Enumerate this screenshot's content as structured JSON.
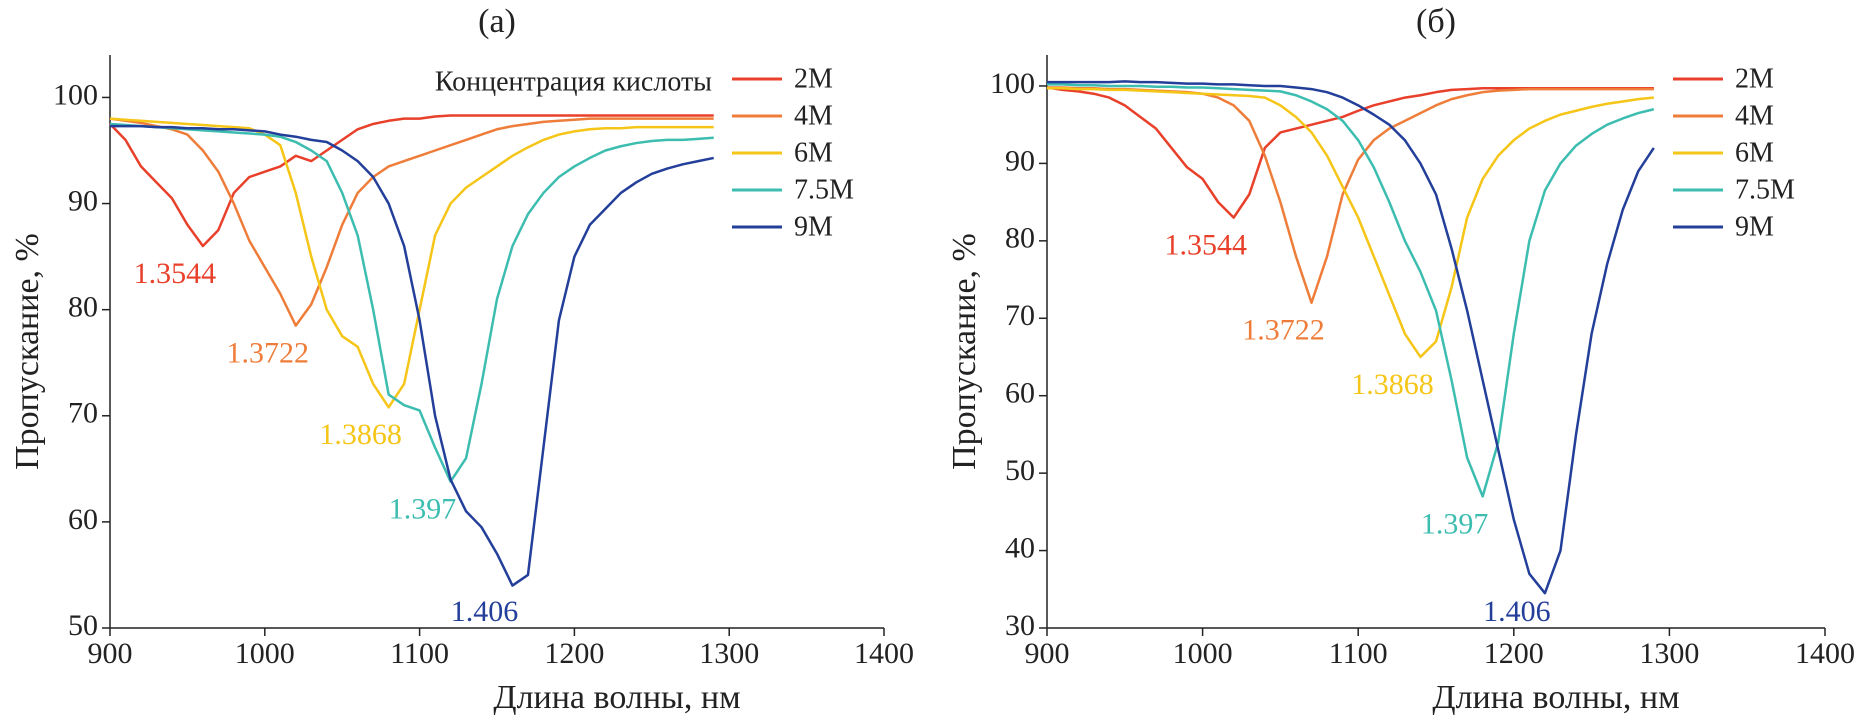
{
  "chart_data": [
    {
      "type": "line",
      "title": "(а)",
      "x_label": "Длина волны, нм",
      "y_label": "Пропускание, %",
      "legend_title": "Концентрация кислоты",
      "legend": "upper right",
      "grid": false,
      "xlim": [
        900,
        1400
      ],
      "xticks": [
        900,
        1000,
        1100,
        1200,
        1300,
        1400
      ],
      "ylim": [
        50,
        104
      ],
      "yticks": [
        50,
        60,
        70,
        80,
        90,
        100
      ],
      "x": [
        900,
        910,
        920,
        930,
        940,
        950,
        960,
        970,
        980,
        990,
        1000,
        1010,
        1020,
        1030,
        1040,
        1050,
        1060,
        1070,
        1080,
        1090,
        1100,
        1110,
        1120,
        1130,
        1140,
        1150,
        1160,
        1170,
        1180,
        1190,
        1200,
        1210,
        1220,
        1230,
        1240,
        1250,
        1260,
        1270,
        1280,
        1290
      ],
      "series": [
        {
          "name": "2M",
          "color": "#e8402a",
          "peak_label": "1.3544",
          "values": [
            97.5,
            96,
            93.5,
            92,
            90.5,
            88,
            86,
            87.5,
            91,
            92.5,
            93,
            93.5,
            94.5,
            94,
            95,
            96,
            97,
            97.5,
            97.8,
            98,
            98,
            98.2,
            98.3,
            98.3,
            98.3,
            98.3,
            98.3,
            98.3,
            98.3,
            98.3,
            98.3,
            98.3,
            98.3,
            98.3,
            98.3,
            98.3,
            98.3,
            98.3,
            98.3,
            98.3
          ]
        },
        {
          "name": "4M",
          "color": "#ef7d3a",
          "peak_label": "1.3722",
          "values": [
            98,
            97.8,
            97.6,
            97.3,
            97,
            96.5,
            95,
            93,
            90,
            86.5,
            84,
            81.5,
            78.5,
            80.5,
            84,
            88,
            91,
            92.5,
            93.5,
            94,
            94.5,
            95,
            95.5,
            96,
            96.5,
            97,
            97.3,
            97.5,
            97.7,
            97.8,
            97.9,
            98,
            98,
            98,
            98,
            98,
            98,
            98,
            98,
            98
          ]
        },
        {
          "name": "6M",
          "color": "#f5c518",
          "peak_label": "1.3868",
          "values": [
            98,
            97.9,
            97.8,
            97.7,
            97.6,
            97.5,
            97.4,
            97.3,
            97.2,
            97.1,
            96.5,
            95.5,
            91,
            85,
            80,
            77.5,
            76.5,
            73,
            70.8,
            73,
            80,
            87,
            90,
            91.5,
            92.5,
            93.5,
            94.5,
            95.3,
            96,
            96.5,
            96.8,
            97,
            97.1,
            97.1,
            97.2,
            97.2,
            97.2,
            97.2,
            97.2,
            97.2
          ]
        },
        {
          "name": "7.5M",
          "color": "#3dbdb0",
          "peak_label": "1.397",
          "values": [
            97.5,
            97.4,
            97.3,
            97.2,
            97.1,
            97,
            96.9,
            96.8,
            96.7,
            96.6,
            96.5,
            96.3,
            95.8,
            95,
            94,
            91,
            87,
            80,
            72,
            71,
            70.5,
            67,
            63.8,
            66,
            73,
            81,
            86,
            89,
            91,
            92.5,
            93.5,
            94.3,
            95,
            95.4,
            95.7,
            95.9,
            96,
            96,
            96.1,
            96.2
          ]
        },
        {
          "name": "9M",
          "color": "#233f9a",
          "peak_label": "1.406",
          "values": [
            97.3,
            97.3,
            97.3,
            97.2,
            97.2,
            97.1,
            97.1,
            97,
            97,
            96.9,
            96.8,
            96.5,
            96.3,
            96,
            95.8,
            95,
            94,
            92.5,
            90,
            86,
            79,
            70,
            64,
            61,
            59.5,
            57,
            54,
            55,
            67,
            79,
            85,
            88,
            89.5,
            91,
            92,
            92.8,
            93.3,
            93.7,
            94,
            94.3
          ]
        }
      ]
    },
    {
      "type": "line",
      "title": "(б)",
      "x_label": "Длина волны, нм",
      "y_label": "Пропускание, %",
      "legend": "upper right",
      "grid": false,
      "xlim": [
        900,
        1400
      ],
      "xticks": [
        900,
        1000,
        1100,
        1200,
        1300,
        1400
      ],
      "ylim": [
        30,
        104
      ],
      "yticks": [
        30,
        40,
        50,
        60,
        70,
        80,
        90,
        100
      ],
      "x": [
        900,
        910,
        920,
        930,
        940,
        950,
        960,
        970,
        980,
        990,
        1000,
        1010,
        1020,
        1030,
        1040,
        1050,
        1060,
        1070,
        1080,
        1090,
        1100,
        1110,
        1120,
        1130,
        1140,
        1150,
        1160,
        1170,
        1180,
        1190,
        1200,
        1210,
        1220,
        1230,
        1240,
        1250,
        1260,
        1270,
        1280,
        1290
      ],
      "series": [
        {
          "name": "2M",
          "color": "#e8402a",
          "peak_label": "1.3544",
          "values": [
            99.8,
            99.5,
            99.3,
            99,
            98.5,
            97.5,
            96,
            94.5,
            92,
            89.5,
            88,
            85,
            83,
            86,
            92,
            94,
            94.5,
            95,
            95.5,
            96,
            96.8,
            97.5,
            98,
            98.5,
            98.8,
            99.2,
            99.5,
            99.6,
            99.7,
            99.7,
            99.7,
            99.7,
            99.7,
            99.7,
            99.7,
            99.7,
            99.7,
            99.7,
            99.7,
            99.7
          ]
        },
        {
          "name": "4M",
          "color": "#ef7d3a",
          "peak_label": "1.3722",
          "values": [
            99.8,
            99.8,
            99.7,
            99.7,
            99.6,
            99.6,
            99.5,
            99.4,
            99.3,
            99.2,
            99,
            98.5,
            97.5,
            95.5,
            91,
            85,
            78,
            72,
            78,
            86,
            90.5,
            93,
            94.5,
            95.5,
            96.5,
            97.5,
            98.3,
            98.8,
            99.2,
            99.4,
            99.5,
            99.6,
            99.6,
            99.6,
            99.6,
            99.6,
            99.6,
            99.6,
            99.6,
            99.6
          ]
        },
        {
          "name": "6M",
          "color": "#f5c518",
          "peak_label": "1.3868",
          "values": [
            99.7,
            99.7,
            99.6,
            99.6,
            99.5,
            99.5,
            99.4,
            99.3,
            99.2,
            99.1,
            99,
            98.9,
            98.8,
            98.7,
            98.5,
            97.5,
            96,
            94,
            91,
            87,
            83,
            78,
            73,
            68,
            65,
            67,
            74,
            83,
            88,
            91,
            93,
            94.5,
            95.5,
            96.3,
            96.8,
            97.3,
            97.7,
            98,
            98.3,
            98.5
          ]
        },
        {
          "name": "7.5M",
          "color": "#3dbdb0",
          "peak_label": "1.397",
          "values": [
            100.2,
            100.2,
            100.1,
            100.1,
            100,
            100,
            100,
            99.9,
            99.9,
            99.8,
            99.8,
            99.7,
            99.6,
            99.5,
            99.4,
            99.3,
            98.8,
            98,
            97,
            95.5,
            93,
            89.5,
            85,
            80,
            76,
            71,
            62,
            52,
            47,
            54,
            68,
            80,
            86.5,
            90,
            92.3,
            93.8,
            95,
            95.8,
            96.5,
            97
          ]
        },
        {
          "name": "9M",
          "color": "#233f9a",
          "peak_label": "1.406",
          "values": [
            100.5,
            100.5,
            100.5,
            100.5,
            100.5,
            100.6,
            100.5,
            100.5,
            100.4,
            100.3,
            100.3,
            100.2,
            100.2,
            100.1,
            100,
            100,
            99.8,
            99.6,
            99.2,
            98.5,
            97.5,
            96.3,
            95,
            93,
            90,
            86,
            79,
            71,
            62,
            53,
            44,
            37,
            34.5,
            40,
            55,
            68,
            77,
            84,
            89,
            92
          ]
        }
      ]
    }
  ]
}
